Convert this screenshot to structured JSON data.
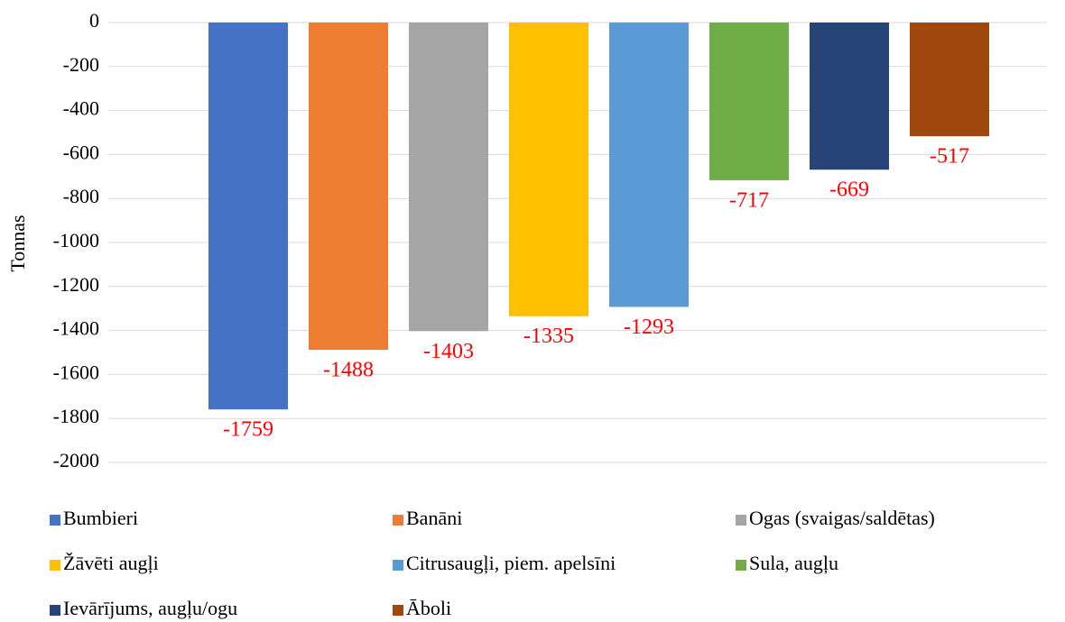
{
  "chart_data": {
    "type": "bar",
    "y_label": "Tonnas",
    "ylim": [
      -2000,
      0
    ],
    "yticks": [
      0,
      -200,
      -400,
      -600,
      -800,
      -1000,
      -1200,
      -1400,
      -1600,
      -1800,
      -2000
    ],
    "grid": true,
    "legend": "bottom",
    "series": [
      {
        "name": "Bumbieri",
        "color": "#4472c4",
        "values": [
          -1759
        ]
      },
      {
        "name": "Banāni",
        "color": "#ed7d31",
        "values": [
          -1488
        ]
      },
      {
        "name": "Ogas (svaigas/saldētas)",
        "color": "#a5a5a5",
        "values": [
          -1403
        ]
      },
      {
        "name": "Žāvēti augļi",
        "color": "#ffc000",
        "values": [
          -1335
        ]
      },
      {
        "name": "Citrusaugļi, piem. apelsīni",
        "color": "#5b9bd5",
        "values": [
          -1293
        ]
      },
      {
        "name": "Sula, augļu",
        "color": "#70ad47",
        "values": [
          -717
        ]
      },
      {
        "name": "Ievārījums, augļu/ogu",
        "color": "#264478",
        "values": [
          -669
        ]
      },
      {
        "name": "Āboli",
        "color": "#9e480e",
        "values": [
          -517
        ]
      }
    ]
  }
}
